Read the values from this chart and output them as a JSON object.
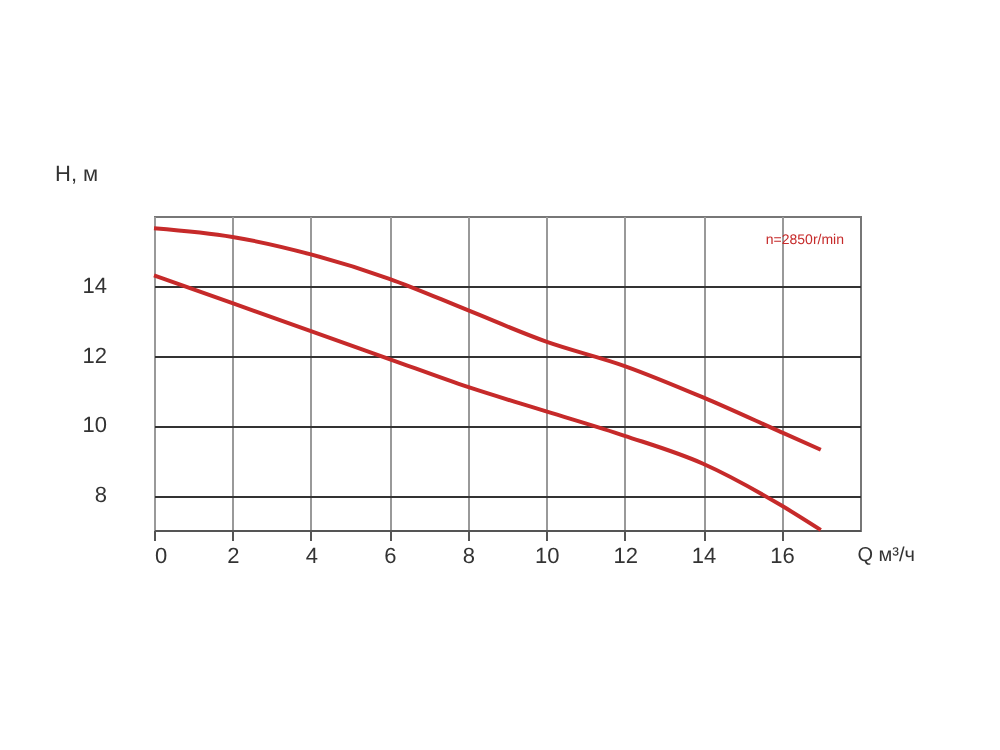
{
  "chart_data": {
    "type": "line",
    "xlabel": "Q м³/ч",
    "ylabel": "H, м",
    "x": [
      0,
      2,
      4,
      6,
      8,
      10,
      12,
      14,
      16,
      17
    ],
    "series": [
      {
        "color": "#c62a2a",
        "values": [
          15.65,
          15.4,
          14.9,
          14.2,
          13.3,
          12.4,
          11.7,
          10.8,
          9.8,
          9.3
        ]
      },
      {
        "color": "#c62a2a",
        "values": [
          14.3,
          13.5,
          12.7,
          11.9,
          11.1,
          10.4,
          9.7,
          8.9,
          7.7,
          7.0
        ]
      }
    ],
    "xlim": [
      0,
      18
    ],
    "ylim": [
      7,
      16
    ],
    "xticks": [
      0,
      2,
      4,
      6,
      8,
      10,
      12,
      14,
      16
    ],
    "yticks": [
      8,
      10,
      12,
      14
    ],
    "grid": true,
    "marker": "none",
    "line_style": "solid",
    "annotations": [
      "n=2850r/min"
    ]
  }
}
